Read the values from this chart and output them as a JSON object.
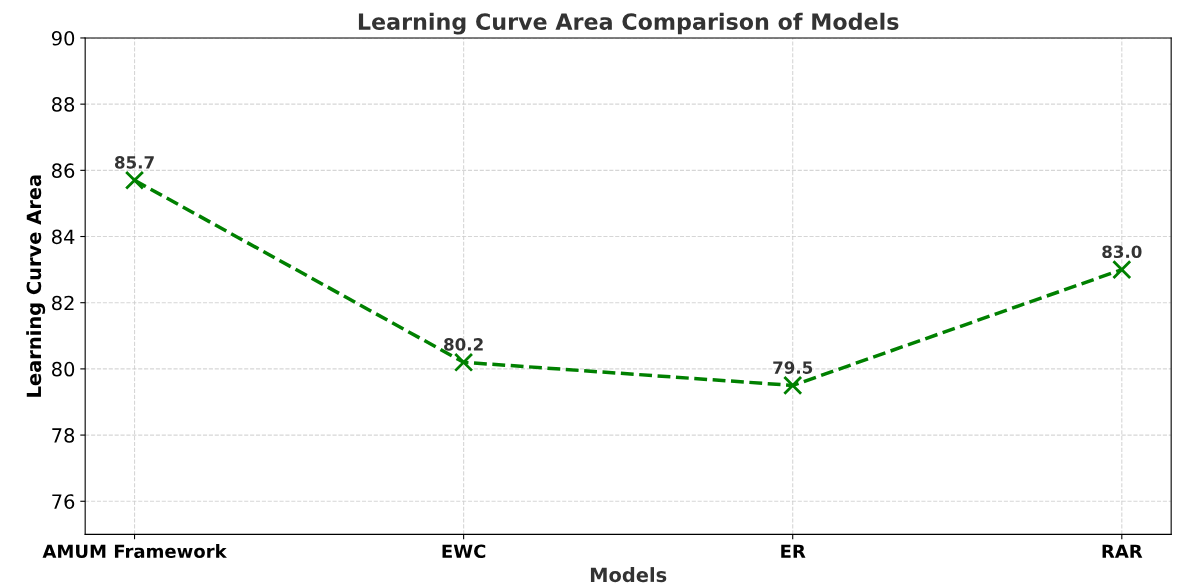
{
  "chart_data": {
    "type": "line",
    "title": "Learning Curve Area Comparison of Models",
    "xlabel": "Models",
    "ylabel": "Learning Curve Area",
    "categories": [
      "AMUM Framework",
      "EWC",
      "ER",
      "RAR"
    ],
    "values": [
      85.7,
      80.2,
      79.5,
      83.0
    ],
    "value_labels": [
      "85.7",
      "80.2",
      "79.5",
      "83.0"
    ],
    "color": "#008000",
    "marker": "cross",
    "line_style": "dashed",
    "ylim": [
      75,
      90
    ],
    "yticks": [
      76,
      78,
      80,
      82,
      84,
      86,
      88,
      90
    ],
    "grid": true
  }
}
